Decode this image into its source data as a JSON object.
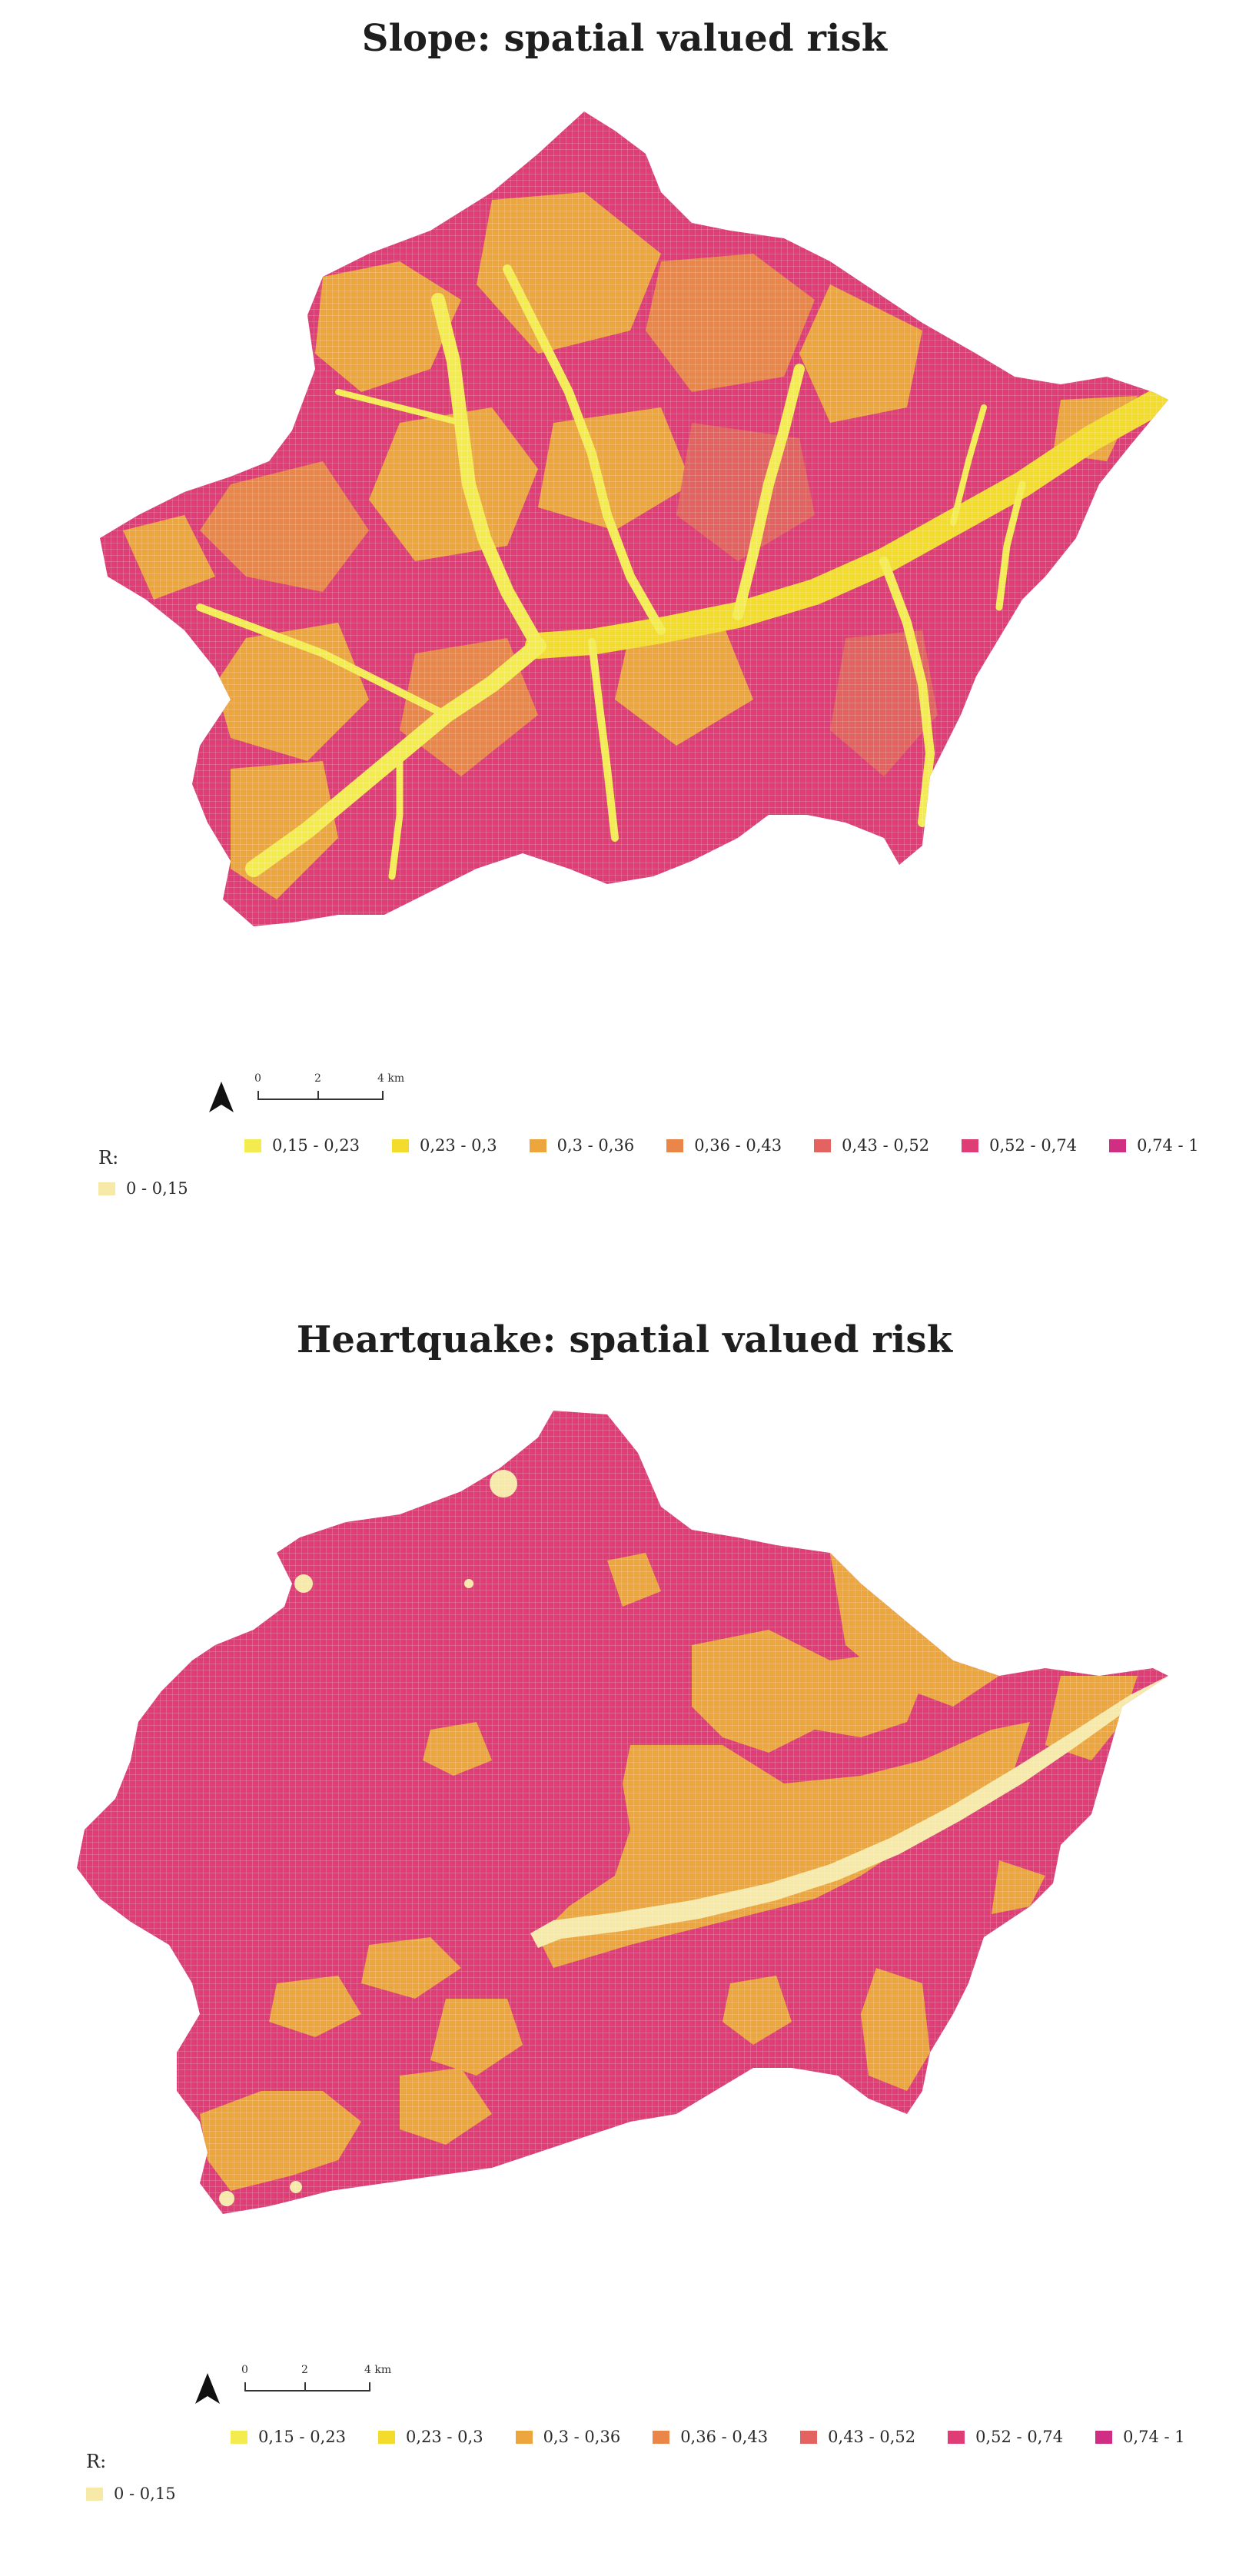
{
  "maps": [
    {
      "title": "Slope: spatial valued risk",
      "dominant_classes": [
        "0,74 - 1",
        "0,52 - 0,74",
        "0,3 - 0,36",
        "0,15 - 0,23"
      ],
      "scalebar": {
        "ticks": [
          "0",
          "2",
          "4 km"
        ]
      },
      "legend": {
        "label": "R:",
        "classes": [
          {
            "label": "0 - 0,15",
            "color": "#f7e9a8"
          },
          {
            "label": "0,15 - 0,23",
            "color": "#f4ec4f"
          },
          {
            "label": "0,23 - 0,3",
            "color": "#f3dc2c"
          },
          {
            "label": "0,3 - 0,36",
            "color": "#eca63d"
          },
          {
            "label": "0,36 - 0,43",
            "color": "#e98648"
          },
          {
            "label": "0,43 - 0,52",
            "color": "#e36360"
          },
          {
            "label": "0,52 - 0,74",
            "color": "#de3d75"
          },
          {
            "label": "0,74 - 1",
            "color": "#cf2e83"
          }
        ]
      }
    },
    {
      "title": "Heartquake: spatial valued risk",
      "dominant_classes": [
        "0,52 - 0,74",
        "0,3 - 0,36",
        "0 - 0,15"
      ],
      "scalebar": {
        "ticks": [
          "0",
          "2",
          "4 km"
        ]
      },
      "legend": {
        "label": "R:",
        "classes": [
          {
            "label": "0 - 0,15",
            "color": "#f7e9a8"
          },
          {
            "label": "0,15 - 0,23",
            "color": "#f4ec4f"
          },
          {
            "label": "0,23 - 0,3",
            "color": "#f3dc2c"
          },
          {
            "label": "0,3 - 0,36",
            "color": "#eca63d"
          },
          {
            "label": "0,36 - 0,43",
            "color": "#e98648"
          },
          {
            "label": "0,43 - 0,52",
            "color": "#e36360"
          },
          {
            "label": "0,52 - 0,74",
            "color": "#de3d75"
          },
          {
            "label": "0,74 - 1",
            "color": "#cf2e83"
          }
        ]
      }
    }
  ],
  "icons": {
    "north_arrow": "north-arrow-icon"
  }
}
